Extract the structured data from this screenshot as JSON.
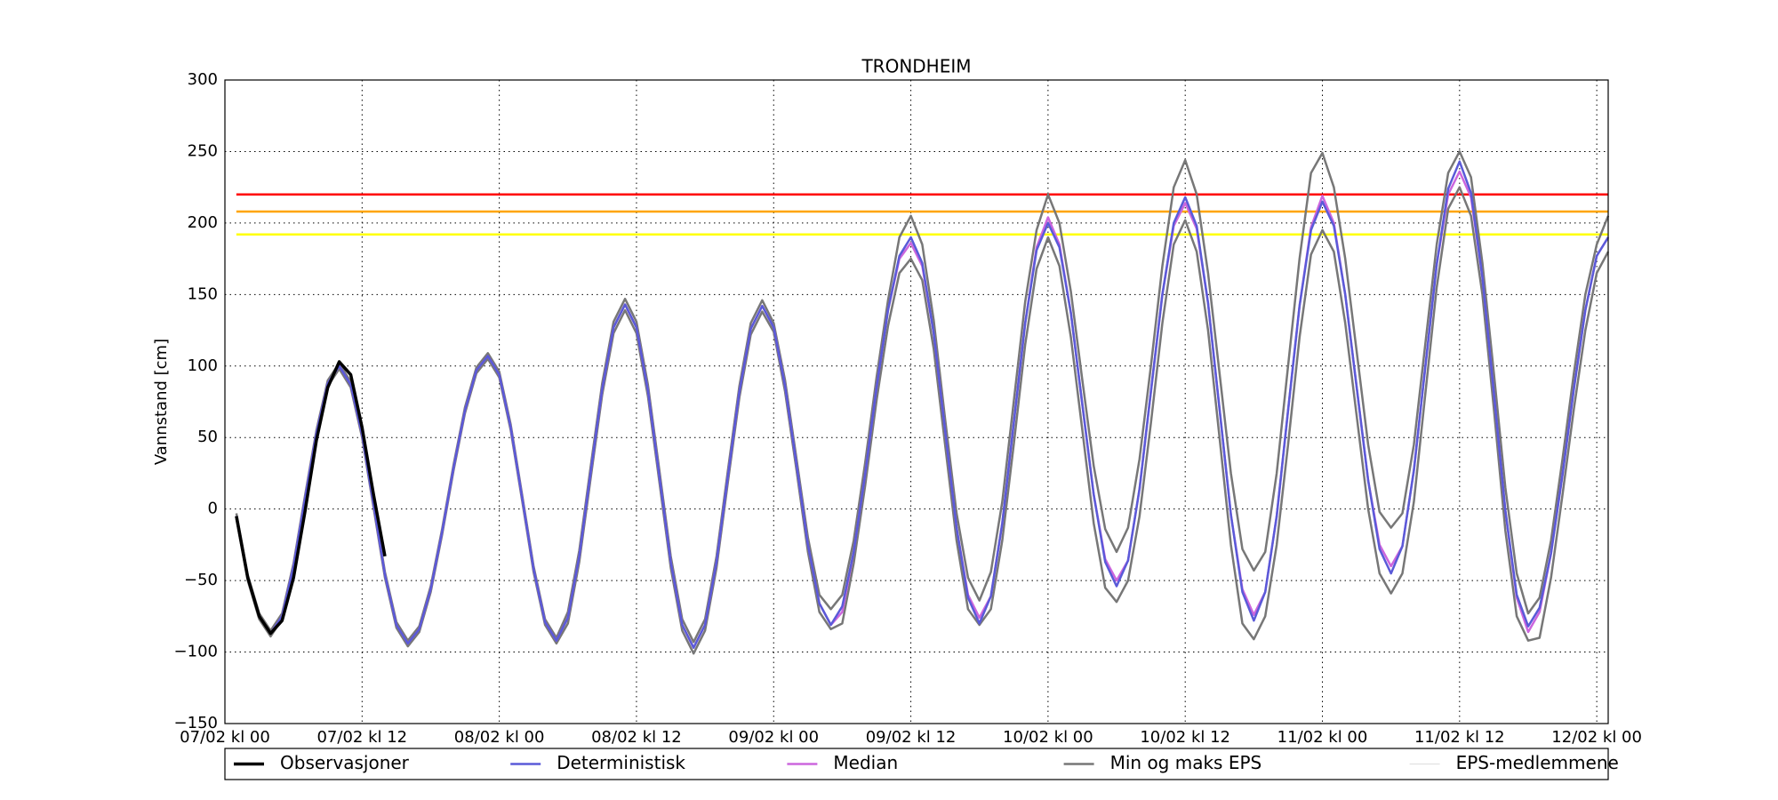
{
  "chart_data": {
    "type": "line",
    "title": "TRONDHEIM",
    "y_label": "Vannstand [cm]",
    "xlim": [
      0,
      121
    ],
    "ylim": [
      -150,
      300
    ],
    "xticks": [
      {
        "value": 0,
        "label": "07/02 kl 00"
      },
      {
        "value": 12,
        "label": "07/02 kl 12"
      },
      {
        "value": 24,
        "label": "08/02 kl 00"
      },
      {
        "value": 36,
        "label": "08/02 kl 12"
      },
      {
        "value": 48,
        "label": "09/02 kl 00"
      },
      {
        "value": 60,
        "label": "09/02 kl 12"
      },
      {
        "value": 72,
        "label": "10/02 kl 00"
      },
      {
        "value": 84,
        "label": "10/02 kl 12"
      },
      {
        "value": 96,
        "label": "11/02 kl 00"
      },
      {
        "value": 108,
        "label": "11/02 kl 12"
      },
      {
        "value": 120,
        "label": "12/02 kl 00"
      }
    ],
    "yticks": [
      {
        "value": -150,
        "label": "−150"
      },
      {
        "value": -100,
        "label": "−100"
      },
      {
        "value": -50,
        "label": "−50"
      },
      0,
      50,
      100,
      150,
      200,
      250,
      300
    ],
    "grid": true,
    "thresholds": [
      {
        "value": 220,
        "color": "#ff0000"
      },
      {
        "value": 208,
        "color": "#ffa500"
      },
      {
        "value": 192,
        "color": "#ffff00"
      }
    ],
    "x": [
      1,
      2,
      3,
      4,
      5,
      6,
      7,
      8,
      9,
      10,
      11,
      12,
      13,
      14,
      15,
      16,
      17,
      18,
      19,
      20,
      21,
      22,
      23,
      24,
      25,
      26,
      27,
      28,
      29,
      30,
      31,
      32,
      33,
      34,
      35,
      36,
      37,
      38,
      39,
      40,
      41,
      42,
      43,
      44,
      45,
      46,
      47,
      48,
      49,
      50,
      51,
      52,
      53,
      54,
      55,
      56,
      57,
      58,
      59,
      60,
      61,
      62,
      63,
      64,
      65,
      66,
      67,
      68,
      69,
      70,
      71,
      72,
      73,
      74,
      75,
      76,
      77,
      78,
      79,
      80,
      81,
      82,
      83,
      84,
      85,
      86,
      87,
      88,
      89,
      90,
      91,
      92,
      93,
      94,
      95,
      96,
      97,
      98,
      99,
      100,
      101,
      102,
      103,
      104,
      105,
      106,
      107,
      108,
      109,
      110,
      111,
      112,
      113,
      114,
      115,
      116,
      117,
      118,
      119,
      120,
      121
    ],
    "series": [
      {
        "name": "Observasjoner",
        "color": "#000000",
        "width": 3.5,
        "x": [
          1,
          2,
          3,
          4,
          5,
          6,
          7,
          8,
          9,
          10,
          11,
          12,
          13,
          14
        ],
        "values": [
          -5,
          -48,
          -75,
          -87,
          -78,
          -48,
          -2,
          48,
          85,
          103,
          94,
          57,
          10,
          -33
        ]
      },
      {
        "name": "Deterministisk",
        "color": "#5a5ad8",
        "width": 2.5,
        "values": [
          -5,
          -48,
          -75,
          -87,
          -75,
          -40,
          7,
          53,
          88,
          100,
          87,
          52,
          3,
          -46,
          -81,
          -94,
          -84,
          -56,
          -16,
          29,
          69,
          97,
          107,
          94,
          57,
          8,
          -42,
          -79,
          -92,
          -76,
          -33,
          26,
          84,
          127,
          143,
          127,
          83,
          23,
          -37,
          -81,
          -97,
          -81,
          -37,
          23,
          82,
          126,
          142,
          127,
          86,
          31,
          -25,
          -66,
          -81,
          -68,
          -30,
          24,
          85,
          139,
          177,
          190,
          172,
          123,
          55,
          -13,
          -62,
          -80,
          -61,
          -10,
          60,
          130,
          181,
          200,
          183,
          137,
          73,
          10,
          -37,
          -54,
          -36,
          14,
          82,
          150,
          200,
          218,
          198,
          144,
          70,
          -4,
          -58,
          -78,
          -58,
          -5,
          69,
          142,
          195,
          215,
          198,
          150,
          85,
          20,
          -28,
          -45,
          -26,
          27,
          99,
          171,
          224,
          243,
          221,
          162,
          81,
          -1,
          -60,
          -82,
          -69,
          -31,
          24,
          84,
          139,
          177,
          190
        ]
      },
      {
        "name": "Median",
        "color": "#cc66dd",
        "width": 2.5,
        "values": [
          -5,
          -48,
          -75,
          -87,
          -75,
          -40,
          7,
          53,
          88,
          100,
          87,
          52,
          3,
          -46,
          -81,
          -94,
          -84,
          -56,
          -16,
          29,
          69,
          97,
          107,
          94,
          57,
          8,
          -42,
          -79,
          -92,
          -76,
          -33,
          26,
          84,
          127,
          143,
          127,
          83,
          23,
          -37,
          -81,
          -97,
          -81,
          -37,
          23,
          82,
          126,
          142,
          127,
          86,
          31,
          -25,
          -66,
          -81,
          -72,
          -30,
          24,
          85,
          139,
          175,
          186,
          170,
          123,
          55,
          -13,
          -60,
          -76,
          -61,
          -10,
          60,
          130,
          183,
          204,
          185,
          137,
          73,
          10,
          -35,
          -50,
          -36,
          14,
          82,
          150,
          198,
          214,
          196,
          144,
          70,
          -4,
          -56,
          -74,
          -58,
          -5,
          69,
          142,
          197,
          219,
          200,
          150,
          85,
          20,
          -25,
          -40,
          -26,
          27,
          99,
          171,
          220,
          236,
          218,
          162,
          81,
          -1,
          -62,
          -86,
          -72,
          -31,
          24,
          84,
          139,
          177,
          190
        ]
      },
      {
        "name": "Min og maks EPS",
        "color": "#777777",
        "width": 2.5,
        "min": [
          -7,
          -50,
          -77,
          -89,
          -77,
          -42,
          5,
          51,
          86,
          98,
          85,
          50,
          1,
          -48,
          -83,
          -96,
          -86,
          -58,
          -18,
          27,
          67,
          95,
          105,
          92,
          55,
          6,
          -44,
          -81,
          -94,
          -80,
          -37,
          22,
          80,
          123,
          139,
          123,
          79,
          19,
          -41,
          -85,
          -101,
          -85,
          -41,
          19,
          78,
          122,
          138,
          124,
          82,
          27,
          -30,
          -72,
          -84,
          -80,
          -38,
          16,
          76,
          128,
          165,
          175,
          160,
          112,
          45,
          -22,
          -70,
          -81,
          -70,
          -22,
          45,
          115,
          168,
          190,
          170,
          120,
          55,
          -10,
          -55,
          -65,
          -50,
          -5,
          60,
          130,
          185,
          202,
          180,
          125,
          50,
          -25,
          -80,
          -91,
          -75,
          -25,
          45,
          120,
          178,
          195,
          180,
          130,
          65,
          0,
          -45,
          -59,
          -45,
          5,
          80,
          155,
          210,
          225,
          205,
          150,
          70,
          -15,
          -75,
          -92,
          -90,
          -48,
          10,
          70,
          125,
          165,
          180
        ],
        "max": [
          -3,
          -46,
          -73,
          -85,
          -73,
          -38,
          9,
          55,
          90,
          102,
          89,
          54,
          5,
          -44,
          -79,
          -92,
          -82,
          -54,
          -14,
          31,
          71,
          99,
          109,
          96,
          59,
          10,
          -40,
          -77,
          -90,
          -72,
          -29,
          30,
          88,
          131,
          147,
          131,
          87,
          27,
          -33,
          -77,
          -93,
          -77,
          -33,
          27,
          86,
          130,
          146,
          130,
          90,
          35,
          -20,
          -60,
          -70,
          -60,
          -22,
          32,
          92,
          146,
          190,
          205,
          185,
          132,
          63,
          -3,
          -48,
          -64,
          -44,
          5,
          75,
          145,
          195,
          220,
          200,
          152,
          90,
          30,
          -14,
          -30,
          -13,
          35,
          100,
          170,
          225,
          244,
          220,
          165,
          95,
          25,
          -28,
          -43,
          -30,
          25,
          100,
          175,
          235,
          249,
          225,
          175,
          110,
          45,
          -2,
          -13,
          -3,
          45,
          115,
          185,
          235,
          250,
          232,
          172,
          95,
          15,
          -45,
          -73,
          -62,
          -22,
          35,
          95,
          150,
          185,
          205
        ]
      },
      {
        "name": "EPS-medlemmene",
        "color": "#dddddd",
        "width": 1
      }
    ]
  }
}
